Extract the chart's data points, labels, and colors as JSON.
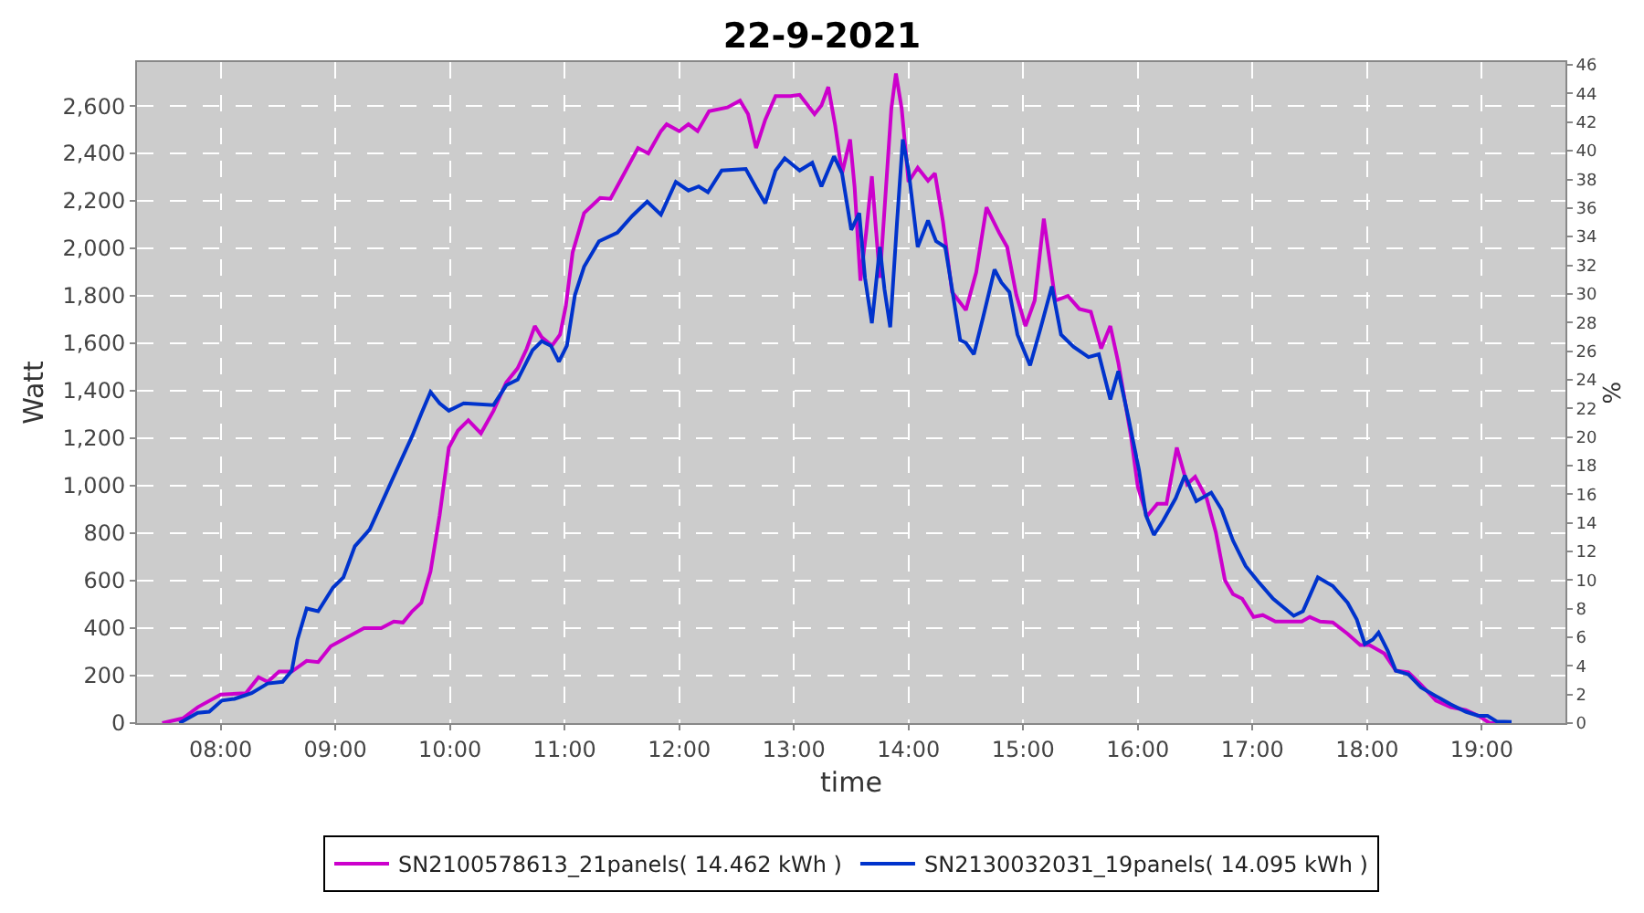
{
  "chart_data": {
    "type": "line",
    "title": "22-9-2021",
    "xlabel": "time",
    "ylabel": "Watt",
    "y2label": "%",
    "xlim": [
      7.27,
      19.73
    ],
    "xticks": [
      {
        "value": 8,
        "label": "08:00"
      },
      {
        "value": 9,
        "label": "09:00"
      },
      {
        "value": 10,
        "label": "10:00"
      },
      {
        "value": 11,
        "label": "11:00"
      },
      {
        "value": 12,
        "label": "12:00"
      },
      {
        "value": 13,
        "label": "13:00"
      },
      {
        "value": 14,
        "label": "14:00"
      },
      {
        "value": 15,
        "label": "15:00"
      },
      {
        "value": 16,
        "label": "16:00"
      },
      {
        "value": 17,
        "label": "17:00"
      },
      {
        "value": 18,
        "label": "18:00"
      },
      {
        "value": 19,
        "label": "19:00"
      }
    ],
    "ylim": [
      0,
      2785
    ],
    "yticks": [
      0,
      200,
      400,
      600,
      800,
      {
        "value": 1000,
        "label": "1,000"
      },
      {
        "value": 1200,
        "label": "1,200"
      },
      {
        "value": 1400,
        "label": "1,400"
      },
      {
        "value": 1600,
        "label": "1,600"
      },
      {
        "value": 1800,
        "label": "1,800"
      },
      {
        "value": 2000,
        "label": "2,000"
      },
      {
        "value": 2200,
        "label": "2,200"
      },
      {
        "value": 2400,
        "label": "2,400"
      },
      {
        "value": 2600,
        "label": "2,600"
      }
    ],
    "y2lim": [
      0,
      46.2
    ],
    "y2ticks": [
      0,
      2,
      4,
      6,
      8,
      10,
      12,
      14,
      16,
      18,
      20,
      22,
      24,
      26,
      28,
      30,
      32,
      34,
      36,
      38,
      40,
      42,
      44,
      46
    ],
    "grid": true,
    "legend": "bottom",
    "line_style": "solid",
    "series": [
      {
        "name": "SN2100578613_21panels( 14.462 kWh )",
        "color": "#cc00cc",
        "x": [
          7.49,
          7.67,
          7.8,
          8.0,
          8.22,
          8.33,
          8.41,
          8.51,
          8.62,
          8.75,
          8.85,
          8.96,
          9.25,
          9.4,
          9.51,
          9.59,
          9.67,
          9.75,
          9.83,
          9.91,
          9.99,
          10.07,
          10.16,
          10.27,
          10.38,
          10.49,
          10.59,
          10.67,
          10.74,
          10.8,
          10.89,
          10.96,
          11.01,
          11.07,
          11.17,
          11.31,
          11.4,
          11.48,
          11.64,
          11.73,
          11.84,
          11.89,
          12.0,
          12.08,
          12.16,
          12.26,
          12.42,
          12.53,
          12.6,
          12.67,
          12.75,
          12.84,
          12.97,
          13.05,
          13.18,
          13.24,
          13.3,
          13.36,
          13.42,
          13.49,
          13.53,
          13.58,
          13.63,
          13.68,
          13.71,
          13.75,
          13.8,
          13.85,
          13.89,
          13.94,
          14.0,
          14.08,
          14.17,
          14.23,
          14.3,
          14.38,
          14.5,
          14.59,
          14.68,
          14.79,
          14.86,
          14.94,
          15.02,
          15.1,
          15.18,
          15.28,
          15.39,
          15.49,
          15.59,
          15.68,
          15.76,
          15.83,
          15.94,
          16.0,
          16.08,
          16.17,
          16.25,
          16.34,
          16.43,
          16.5,
          16.6,
          16.68,
          16.76,
          16.83,
          16.91,
          17.01,
          17.09,
          17.2,
          17.43,
          17.5,
          17.59,
          17.7,
          17.83,
          17.94,
          18.02,
          18.15,
          18.25,
          18.36,
          18.47,
          18.6,
          18.73,
          18.86,
          18.97,
          19.07,
          19.18
        ],
        "values": [
          0,
          20,
          67,
          120,
          126,
          193,
          174,
          217,
          217,
          262,
          257,
          324,
          400,
          400,
          428,
          424,
          471,
          507,
          638,
          876,
          1161,
          1233,
          1276,
          1221,
          1316,
          1435,
          1495,
          1578,
          1673,
          1626,
          1590,
          1637,
          1756,
          1983,
          2149,
          2213,
          2209,
          2280,
          2423,
          2400,
          2494,
          2523,
          2494,
          2523,
          2494,
          2578,
          2594,
          2623,
          2566,
          2423,
          2542,
          2642,
          2642,
          2647,
          2566,
          2602,
          2680,
          2518,
          2316,
          2459,
          2256,
          1864,
          2066,
          2304,
          2114,
          1876,
          2233,
          2590,
          2737,
          2590,
          2280,
          2340,
          2285,
          2316,
          2114,
          1816,
          1740,
          1899,
          2173,
          2066,
          2006,
          1804,
          1673,
          1780,
          2125,
          1780,
          1800,
          1745,
          1733,
          1578,
          1673,
          1518,
          1209,
          995,
          871,
          924,
          924,
          1161,
          1007,
          1038,
          947,
          804,
          602,
          543,
          524,
          447,
          455,
          428,
          428,
          447,
          428,
          424,
          376,
          329,
          329,
          293,
          221,
          214,
          162,
          95,
          67,
          55,
          31,
          0,
          0
        ]
      },
      {
        "name": "SN2130032031_19panels( 14.095 kWh )",
        "color": "#0033cc",
        "x": [
          7.64,
          7.8,
          7.9,
          8.01,
          8.12,
          8.27,
          8.41,
          8.54,
          8.62,
          8.67,
          8.75,
          8.85,
          8.98,
          9.07,
          9.17,
          9.3,
          9.49,
          9.67,
          9.75,
          9.83,
          9.91,
          9.99,
          10.12,
          10.38,
          10.49,
          10.59,
          10.72,
          10.8,
          10.88,
          10.95,
          11.02,
          11.09,
          11.17,
          11.3,
          11.46,
          11.59,
          11.72,
          11.84,
          11.97,
          12.08,
          12.17,
          12.25,
          12.37,
          12.58,
          12.67,
          12.75,
          12.84,
          12.92,
          13.05,
          13.16,
          13.24,
          13.35,
          13.42,
          13.5,
          13.57,
          13.62,
          13.68,
          13.75,
          13.79,
          13.84,
          13.9,
          13.95,
          14.0,
          14.08,
          14.17,
          14.24,
          14.32,
          14.38,
          14.45,
          14.5,
          14.57,
          14.65,
          14.75,
          14.81,
          14.88,
          14.95,
          15.06,
          15.15,
          15.25,
          15.33,
          15.44,
          15.57,
          15.66,
          15.76,
          15.83,
          15.92,
          16.01,
          16.07,
          16.14,
          16.22,
          16.33,
          16.41,
          16.51,
          16.64,
          16.73,
          16.83,
          16.94,
          17.04,
          17.18,
          17.36,
          17.44,
          17.57,
          17.7,
          17.83,
          17.91,
          17.98,
          18.05,
          18.1,
          18.18,
          18.25,
          18.36,
          18.47,
          18.6,
          18.73,
          18.86,
          18.97,
          19.05,
          19.13,
          19.26
        ],
        "values": [
          0,
          43,
          48,
          95,
          102,
          126,
          167,
          174,
          221,
          352,
          483,
          471,
          571,
          614,
          745,
          816,
          1019,
          1209,
          1304,
          1395,
          1347,
          1316,
          1347,
          1340,
          1423,
          1447,
          1571,
          1609,
          1590,
          1523,
          1590,
          1804,
          1923,
          2030,
          2066,
          2137,
          2197,
          2142,
          2280,
          2244,
          2261,
          2237,
          2328,
          2335,
          2256,
          2190,
          2328,
          2380,
          2328,
          2361,
          2261,
          2388,
          2316,
          2078,
          2149,
          1876,
          1685,
          2006,
          1828,
          1668,
          2114,
          2459,
          2328,
          2006,
          2118,
          2030,
          2006,
          1828,
          1614,
          1602,
          1554,
          1709,
          1911,
          1856,
          1816,
          1637,
          1507,
          1661,
          1840,
          1637,
          1585,
          1542,
          1554,
          1364,
          1483,
          1281,
          1066,
          876,
          793,
          852,
          947,
          1043,
          935,
          971,
          900,
          769,
          662,
          602,
          524,
          452,
          471,
          614,
          578,
          507,
          436,
          333,
          352,
          381,
          305,
          221,
          205,
          150,
          114,
          79,
          48,
          31,
          31,
          7,
          5
        ]
      }
    ]
  }
}
